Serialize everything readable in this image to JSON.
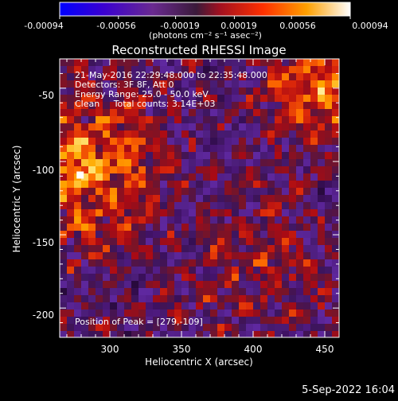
{
  "colorbar": {
    "ticks": [
      "-0.00094",
      "-0.00056",
      "-0.00019",
      "0.00019",
      "0.00056",
      "0.00094"
    ],
    "tick_values": [
      -0.00094,
      -0.00056,
      -0.00019,
      0.00019,
      0.00056,
      0.00094
    ],
    "units_label": "(photons cm⁻² s⁻¹ asec⁻²)",
    "colormap": [
      "#0000ff",
      "#3c00c8",
      "#7a2a8a",
      "#3a1a3a",
      "#b01010",
      "#ff5000",
      "#ffb000",
      "#ffffff"
    ]
  },
  "header": {
    "title": "Reconstructed RHESSI Image"
  },
  "annotations": {
    "line1": "21-May-2016 22:29:48.000 to 22:35:48.000",
    "line2": "Detectors: 3F 8F, Att 0",
    "line3": "Energy Range: 25.0 - 50.0 keV",
    "line4": "Clean     Total counts: 3.14E+03",
    "peak": "Position of Peak = [279,-109]"
  },
  "footer": {
    "timestamp": "5-Sep-2022 16:04"
  },
  "chart_data": {
    "type": "heatmap",
    "title": "Reconstructed RHESSI Image",
    "xlabel": "Heliocentric X (arcsec)",
    "ylabel": "Heliocentric Y (arcsec)",
    "xlim": [
      265,
      460
    ],
    "ylim": [
      -220,
      -30
    ],
    "xticks": [
      300,
      350,
      400,
      450
    ],
    "yticks": [
      -50,
      -100,
      -150,
      -200
    ],
    "value_range": [
      -0.00094,
      0.00094
    ],
    "peak_position": [
      279,
      -109
    ],
    "grid": false,
    "colorbar": "top, horizontal"
  }
}
